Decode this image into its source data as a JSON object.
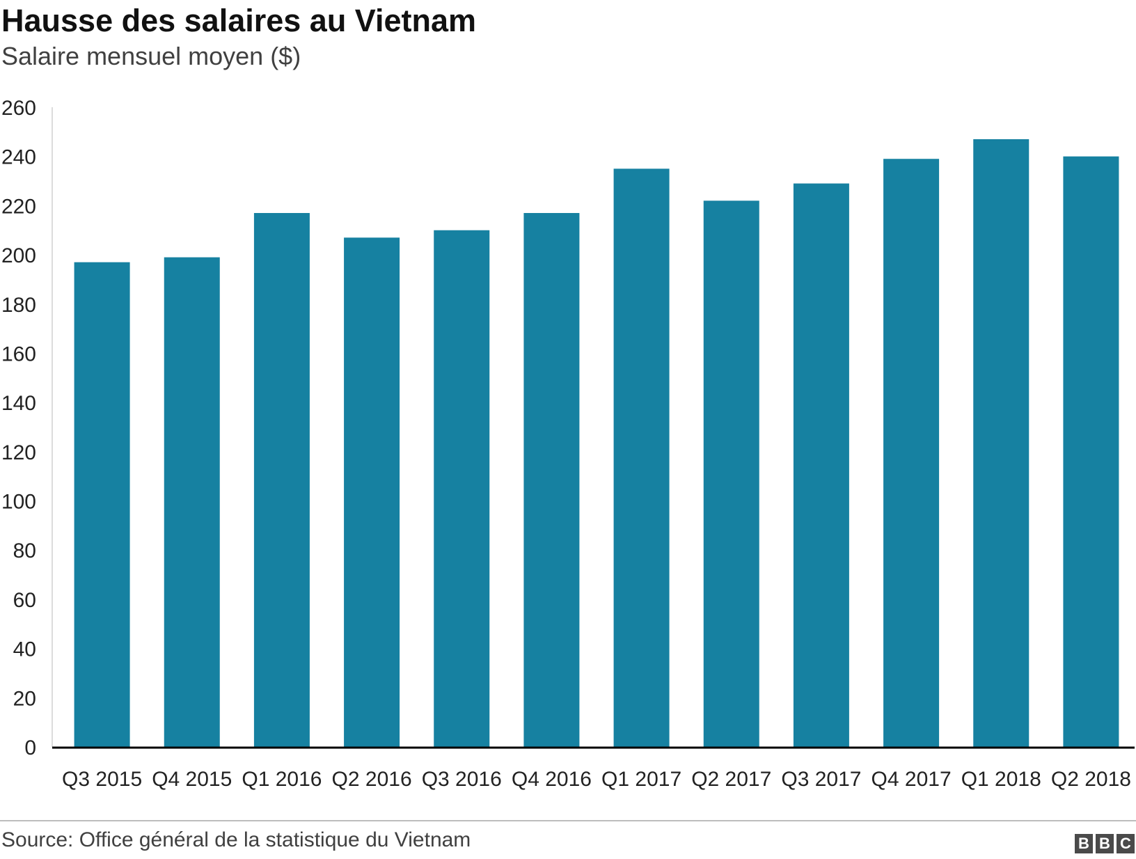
{
  "chart_data": {
    "type": "bar",
    "title": "Hausse des salaires au Vietnam",
    "subtitle": "Salaire mensuel moyen ($)",
    "categories": [
      "Q3 2015",
      "Q4 2015",
      "Q1 2016",
      "Q2 2016",
      "Q3 2016",
      "Q4 2016",
      "Q1 2017",
      "Q2 2017",
      "Q3 2017",
      "Q4 2017",
      "Q1 2018",
      "Q2 2018"
    ],
    "values": [
      197,
      199,
      217,
      207,
      210,
      217,
      235,
      222,
      229,
      239,
      247,
      240
    ],
    "ylim": [
      0,
      260
    ],
    "yticks": [
      0,
      20,
      40,
      60,
      80,
      100,
      120,
      140,
      160,
      180,
      200,
      220,
      240,
      260
    ],
    "grid": false,
    "bar_color": "#1681a1",
    "source": "Source: Office général de la statistique du Vietnam"
  },
  "logo": {
    "letters": [
      "B",
      "B",
      "C"
    ]
  }
}
